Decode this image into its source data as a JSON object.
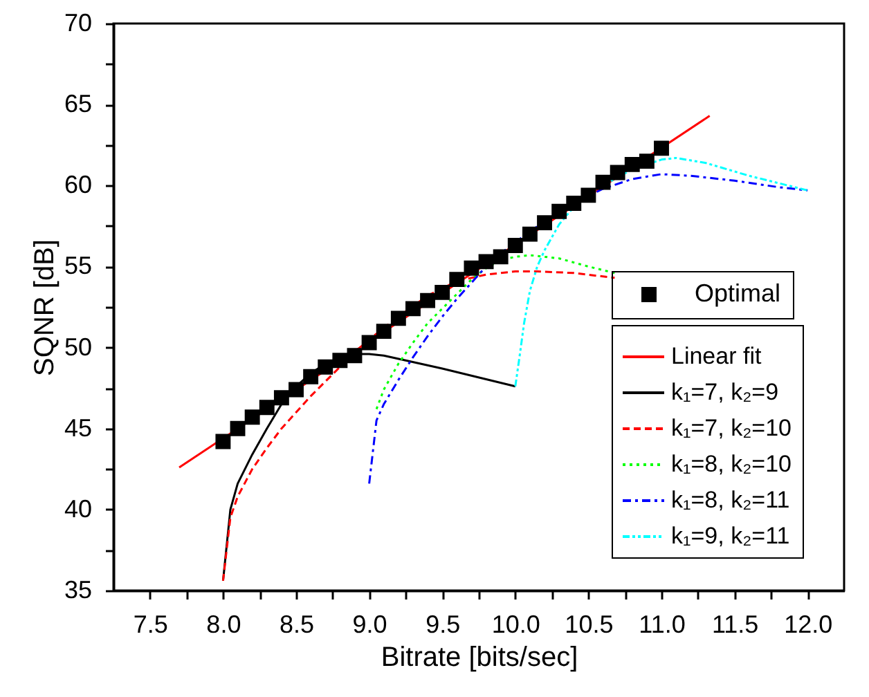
{
  "chart_data": {
    "type": "line",
    "xlabel": "Bitrate [bits/sec]",
    "ylabel": "SQNR [dB]",
    "xlim": [
      7.25,
      12.25
    ],
    "ylim": [
      35,
      70
    ],
    "xticks": [
      {
        "value": 7.5,
        "label": "7.5"
      },
      {
        "value": 7.75,
        "label": null
      },
      {
        "value": 8,
        "label": "8.0"
      },
      {
        "value": 8.25,
        "label": null
      },
      {
        "value": 8.5,
        "label": "8.5"
      },
      {
        "value": 8.75,
        "label": null
      },
      {
        "value": 9,
        "label": "9.0"
      },
      {
        "value": 9.25,
        "label": null
      },
      {
        "value": 9.5,
        "label": "9.5"
      },
      {
        "value": 9.75,
        "label": null
      },
      {
        "value": 10,
        "label": "10.0"
      },
      {
        "value": 10.25,
        "label": null
      },
      {
        "value": 10.5,
        "label": "10.5"
      },
      {
        "value": 10.75,
        "label": null
      },
      {
        "value": 11,
        "label": "11.0"
      },
      {
        "value": 11.25,
        "label": null
      },
      {
        "value": 11.5,
        "label": "11.5"
      },
      {
        "value": 11.75,
        "label": null
      },
      {
        "value": 12,
        "label": "12.0"
      }
    ],
    "yticks": [
      35,
      {
        "value": 37.5,
        "label": null
      },
      40,
      {
        "value": 42.5,
        "label": null
      },
      45,
      {
        "value": 47.5,
        "label": null
      },
      50,
      {
        "value": 52.5,
        "label": null
      },
      55,
      {
        "value": 57.5,
        "label": null
      },
      60,
      {
        "value": 62.5,
        "label": null
      },
      65,
      {
        "value": 67.5,
        "label": null
      },
      70
    ],
    "legend": "bottom right",
    "series": [
      {
        "name": "Optimal",
        "type": "scatter",
        "marker": "square",
        "color": "#000000",
        "x": [
          8.0,
          8.1,
          8.2,
          8.3,
          8.4,
          8.5,
          8.6,
          8.7,
          8.8,
          8.9,
          9.0,
          9.1,
          9.2,
          9.3,
          9.4,
          9.5,
          9.6,
          9.7,
          9.8,
          9.9,
          10.0,
          10.1,
          10.2,
          10.3,
          10.4,
          10.5,
          10.6,
          10.7,
          10.8,
          10.9,
          11.0
        ],
        "values": [
          44.2,
          45.0,
          45.7,
          46.3,
          46.9,
          47.4,
          48.2,
          48.8,
          49.2,
          49.5,
          50.3,
          51.0,
          51.8,
          52.4,
          52.9,
          53.4,
          54.2,
          54.9,
          55.3,
          55.6,
          56.3,
          57.0,
          57.7,
          58.4,
          58.9,
          59.4,
          60.2,
          60.8,
          61.3,
          61.5,
          62.3
        ]
      },
      {
        "name": "Linear fit",
        "line_style": "solid",
        "color": "#ff0000",
        "x": [
          7.7,
          11.33
        ],
        "values": [
          42.6,
          64.3
        ]
      },
      {
        "name": "k₁=7, k₂=9",
        "line_style": "solid",
        "color": "#000000",
        "x": [
          8.0,
          8.05,
          8.1,
          8.2,
          8.3,
          8.4,
          8.5,
          8.6,
          8.7,
          8.8,
          8.9,
          9.0,
          9.1,
          9.25,
          9.5,
          10.0
        ],
        "values": [
          35.6,
          40.0,
          41.6,
          43.4,
          45.0,
          46.5,
          47.6,
          48.4,
          49.0,
          49.4,
          49.6,
          49.6,
          49.5,
          49.2,
          48.7,
          47.6
        ]
      },
      {
        "name": "k₁=7, k₂=10",
        "line_style": "dashed",
        "color": "#ff0000",
        "x": [
          8.0,
          8.05,
          8.1,
          8.2,
          8.3,
          8.4,
          8.5,
          8.6,
          8.7,
          8.8,
          8.9,
          9.0,
          9.2,
          9.4,
          9.6,
          9.8,
          10.0,
          10.15,
          10.4,
          10.68
        ],
        "values": [
          35.6,
          39.5,
          40.8,
          42.5,
          43.8,
          45.0,
          46.0,
          47.0,
          47.9,
          48.8,
          49.7,
          50.5,
          51.9,
          53.2,
          54.1,
          54.5,
          54.7,
          54.7,
          54.6,
          54.3
        ]
      },
      {
        "name": "k₁=8, k₂=10",
        "line_style": "dotted",
        "color": "#00ff00",
        "x": [
          9.05,
          9.1,
          9.2,
          9.3,
          9.4,
          9.5,
          9.6,
          9.7,
          9.8,
          9.9,
          10.0,
          10.1,
          10.3,
          10.5,
          10.68
        ],
        "values": [
          46.2,
          47.4,
          49.0,
          50.3,
          51.5,
          52.4,
          53.3,
          54.2,
          54.9,
          55.4,
          55.6,
          55.7,
          55.5,
          55.0,
          54.6
        ]
      },
      {
        "name": "k₁=8, k₂=11",
        "line_style": "dashdot",
        "color": "#0000ff",
        "x": [
          9.0,
          9.05,
          9.1,
          9.2,
          9.3,
          9.4,
          9.5,
          9.6,
          9.7,
          9.8,
          9.9,
          10.0,
          10.2,
          10.4,
          10.6,
          10.8,
          11.0,
          11.2,
          11.5,
          11.8,
          12.0
        ],
        "values": [
          41.6,
          45.5,
          46.5,
          48.0,
          49.4,
          50.7,
          51.9,
          53.0,
          54.0,
          55.0,
          55.8,
          56.5,
          57.8,
          58.9,
          59.8,
          60.4,
          60.7,
          60.6,
          60.3,
          59.9,
          59.7
        ]
      },
      {
        "name": "k₁=9, k₂=11",
        "line_style": "dashdotdot",
        "color": "#00ffff",
        "x": [
          10.0,
          10.03,
          10.06,
          10.1,
          10.15,
          10.2,
          10.3,
          10.42,
          10.6,
          10.8,
          11.0,
          11.1,
          11.3,
          11.6,
          12.0
        ],
        "values": [
          47.6,
          49.5,
          51.5,
          53.5,
          55.0,
          56.0,
          57.6,
          58.9,
          60.0,
          61.0,
          61.6,
          61.7,
          61.4,
          60.6,
          59.7
        ]
      }
    ]
  }
}
